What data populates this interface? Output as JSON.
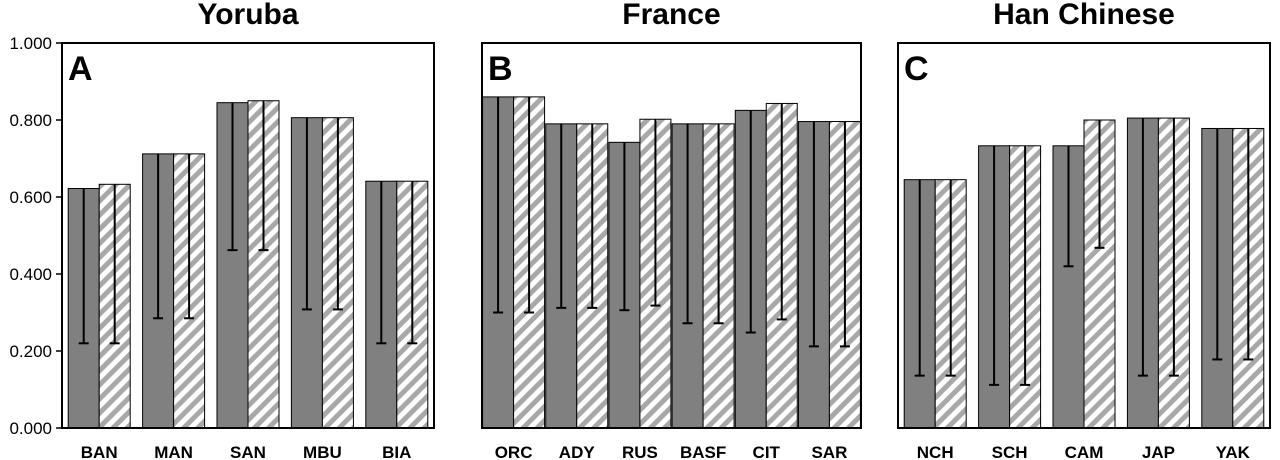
{
  "chart_data": [
    {
      "type": "bar",
      "panel_label": "A",
      "title": "Yoruba",
      "categories": [
        "BAN",
        "MAN",
        "SAN",
        "MBU",
        "BIA"
      ],
      "series": [
        {
          "fill": "solid-gray",
          "values": [
            0.622,
            0.712,
            0.845,
            0.806,
            0.641
          ],
          "error_low": [
            0.22,
            0.285,
            0.462,
            0.308,
            0.22
          ]
        },
        {
          "fill": "diagonal-hatch",
          "values": [
            0.633,
            0.712,
            0.85,
            0.806,
            0.641
          ],
          "error_low": [
            0.22,
            0.285,
            0.462,
            0.308,
            0.22
          ]
        }
      ],
      "ylim": [
        0,
        1
      ],
      "yticks": [
        "0.000",
        "0.200",
        "0.400",
        "0.600",
        "0.800",
        "1.000"
      ],
      "grid": false
    },
    {
      "type": "bar",
      "panel_label": "B",
      "title": "France",
      "categories": [
        "ORC",
        "ADY",
        "RUS",
        "BASF",
        "CIT",
        "SAR"
      ],
      "series": [
        {
          "fill": "solid-gray",
          "values": [
            0.86,
            0.79,
            0.742,
            0.79,
            0.825,
            0.796
          ],
          "error_low": [
            0.3,
            0.312,
            0.306,
            0.272,
            0.248,
            0.212
          ]
        },
        {
          "fill": "diagonal-hatch",
          "values": [
            0.86,
            0.79,
            0.802,
            0.79,
            0.843,
            0.796
          ],
          "error_low": [
            0.3,
            0.312,
            0.318,
            0.272,
            0.282,
            0.212
          ]
        }
      ],
      "ylim": [
        0,
        1
      ],
      "grid": false
    },
    {
      "type": "bar",
      "panel_label": "C",
      "title": "Han Chinese",
      "categories": [
        "NCH",
        "SCH",
        "CAM",
        "JAP",
        "YAK"
      ],
      "series": [
        {
          "fill": "solid-gray",
          "values": [
            0.645,
            0.733,
            0.733,
            0.805,
            0.778
          ],
          "error_low": [
            0.136,
            0.112,
            0.42,
            0.136,
            0.178
          ]
        },
        {
          "fill": "diagonal-hatch",
          "values": [
            0.645,
            0.733,
            0.8,
            0.805,
            0.778
          ],
          "error_low": [
            0.136,
            0.112,
            0.468,
            0.136,
            0.178
          ]
        }
      ],
      "ylim": [
        0,
        1
      ],
      "grid": false
    }
  ],
  "colors": {
    "bar": "#808080",
    "hatch": "#a8a8a8",
    "frame": "#000000",
    "error_bar": "#000000"
  }
}
